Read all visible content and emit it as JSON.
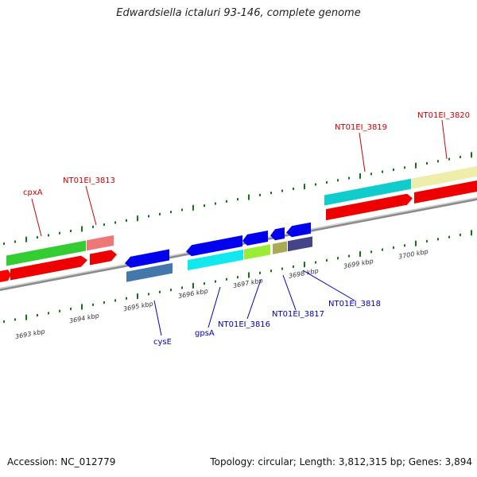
{
  "title": "Edwardsiella ictaluri 93-146, complete genome",
  "footer": {
    "accession": "Accession: NC_012779",
    "summary": "Topology: circular; Length: 3,812,315 bp; Genes: 3,894"
  },
  "ruler_labels": [
    "3693 kbp",
    "3694 kbp",
    "3695 kbp",
    "3696 kbp",
    "3697 kbp",
    "3698 kbp",
    "3699 kbp",
    "3700 kbp"
  ],
  "gene_labels_top": [
    "cpxA",
    "NT01EI_3813",
    "NT01EI_3819",
    "NT01EI_3820"
  ],
  "gene_labels_bottom": [
    "cysE",
    "gpsA",
    "NT01EI_3816",
    "NT01EI_3817",
    "NT01EI_3818"
  ],
  "colors": {
    "forward": "#ff0000",
    "reverse": "#0000ff",
    "green": "#33cc33",
    "pink": "#ee7777",
    "cyan": "#11cccc",
    "khaki": "#eeeeaa",
    "steel": "#4477aa",
    "lime": "#99ee33",
    "olive": "#aaaa55",
    "slate": "#444488",
    "axis": "#8a8a8a",
    "tick": "#117711"
  }
}
